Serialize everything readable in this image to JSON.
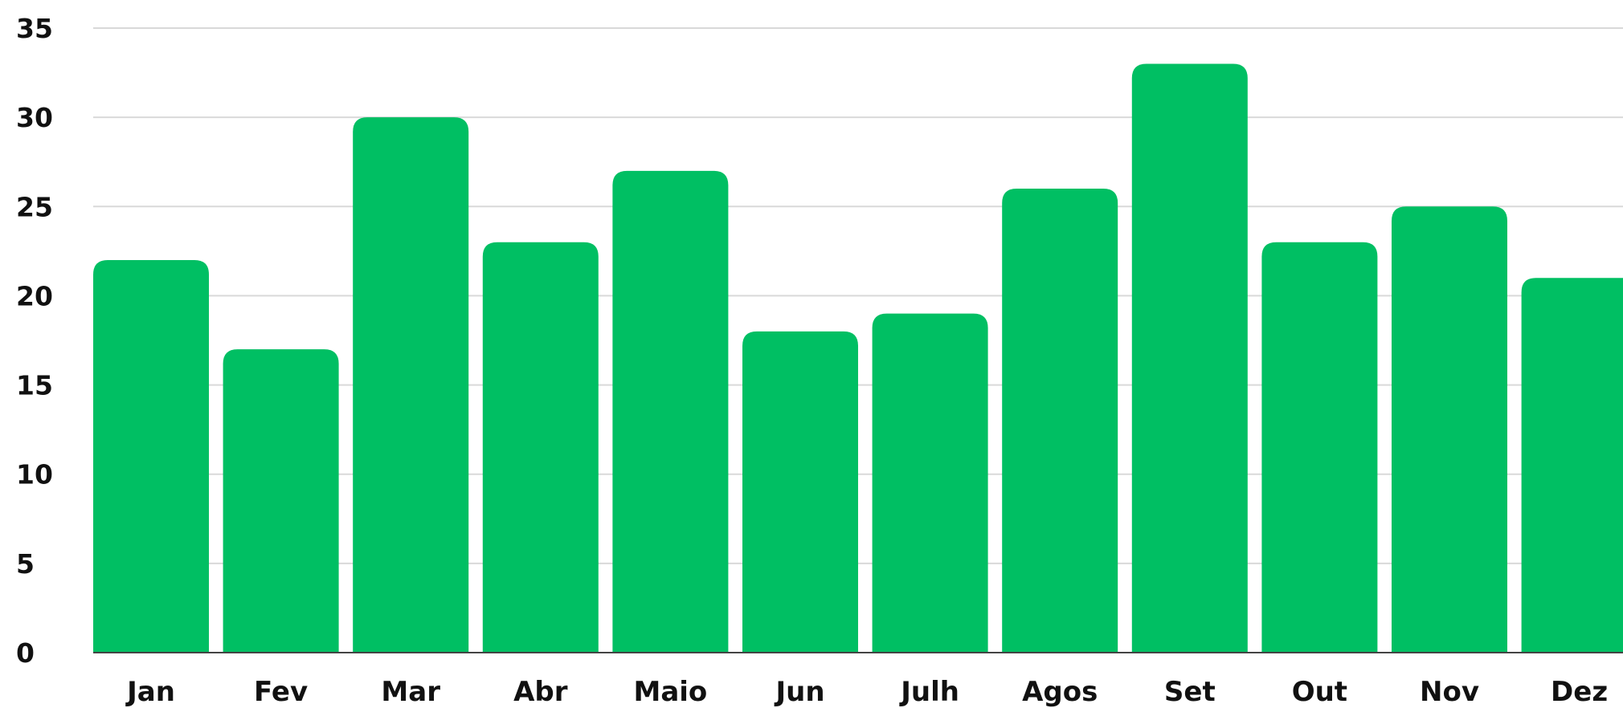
{
  "chart_data": {
    "type": "bar",
    "categories": [
      "Jan",
      "Fev",
      "Mar",
      "Abr",
      "Maio",
      "Jun",
      "Julh",
      "Agos",
      "Set",
      "Out",
      "Nov",
      "Dez"
    ],
    "values": [
      22,
      17,
      30,
      23,
      27,
      18,
      19,
      26,
      33,
      23,
      25,
      21
    ],
    "ylim": [
      0,
      35
    ],
    "yticks": [
      0,
      5,
      10,
      15,
      20,
      25,
      30,
      35
    ],
    "grid": true,
    "title": "",
    "xlabel": "",
    "ylabel": "",
    "bar_color": "#00BF63"
  }
}
